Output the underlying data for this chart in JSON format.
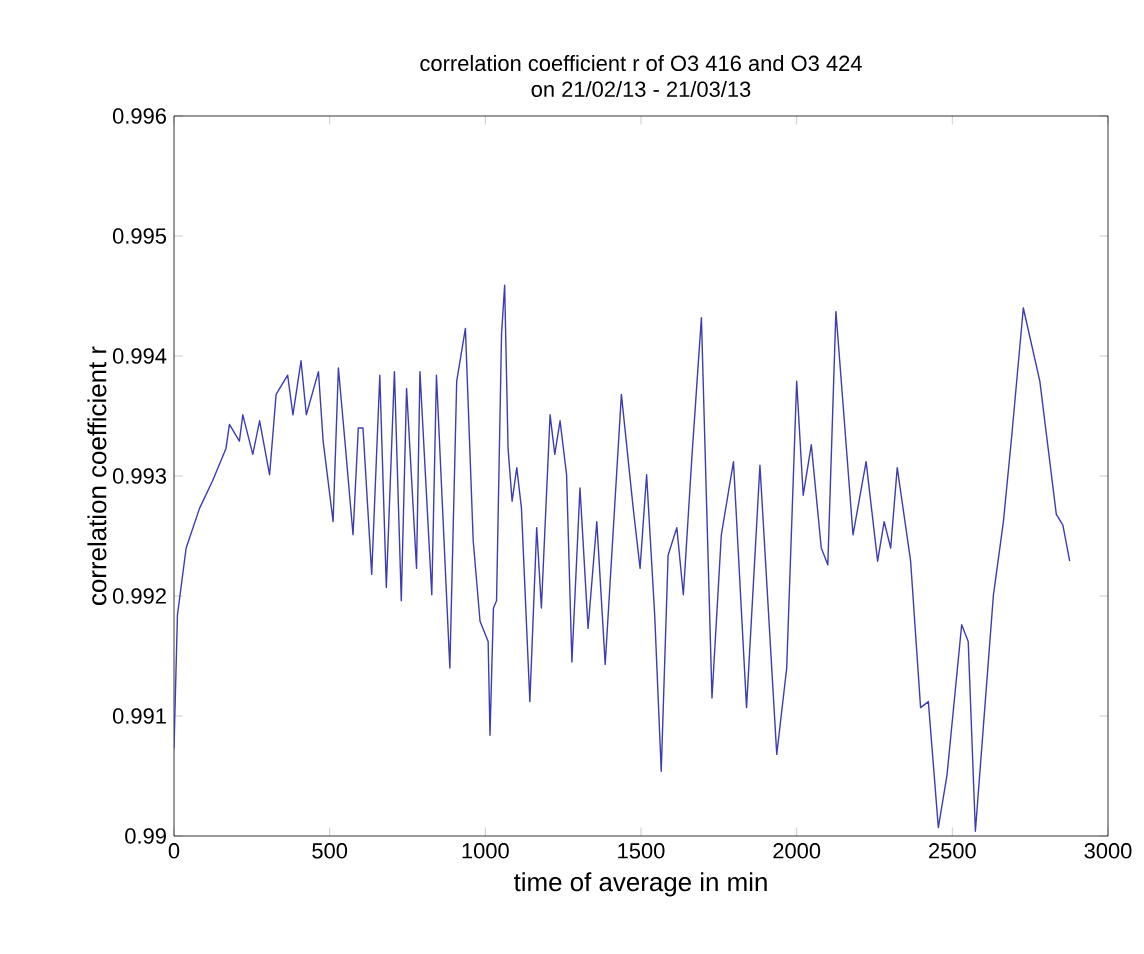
{
  "chart_data": {
    "type": "line",
    "title": "correlation coefficient r of O3 416  and O3 424",
    "subtitle": "on 21/02/13 - 21/03/13",
    "xlabel": "time of average in min",
    "ylabel": "correlation coefficient r",
    "xlim": [
      0,
      3000
    ],
    "ylim": [
      0.99,
      0.996
    ],
    "xticks": [
      0,
      500,
      1000,
      1500,
      2000,
      2500,
      3000
    ],
    "yticks": [
      0.99,
      0.991,
      0.992,
      0.993,
      0.994,
      0.995,
      0.996
    ],
    "series": [
      {
        "color": "#3c3cb4",
        "x": [
          0,
          11,
          39,
          82,
          124,
          167,
          178,
          210,
          221,
          253,
          275,
          307,
          328,
          365,
          382,
          408,
          425,
          464,
          479,
          511,
          528,
          549,
          575,
          592,
          607,
          635,
          661,
          682,
          708,
          730,
          747,
          779,
          790,
          828,
          843,
          886,
          908,
          936,
          961,
          983,
          1009,
          1015,
          1026,
          1036,
          1052,
          1062,
          1073,
          1086,
          1101,
          1116,
          1143,
          1165,
          1180,
          1208,
          1223,
          1240,
          1261,
          1278,
          1304,
          1330,
          1358,
          1385,
          1437,
          1475,
          1497,
          1518,
          1544,
          1565,
          1587,
          1615,
          1636,
          1664,
          1694,
          1728,
          1758,
          1797,
          1839,
          1882,
          1936,
          1968,
          2000,
          2021,
          2047,
          2079,
          2100,
          2126,
          2153,
          2181,
          2223,
          2260,
          2281,
          2302,
          2323,
          2366,
          2398,
          2423,
          2455,
          2483,
          2530,
          2551,
          2574,
          2632,
          2664,
          2691,
          2728,
          2781,
          2834,
          2855,
          2877
        ],
        "values": [
          0.99073,
          0.99184,
          0.9924,
          0.99273,
          0.99296,
          0.99323,
          0.99343,
          0.99329,
          0.99351,
          0.99318,
          0.99346,
          0.99301,
          0.99368,
          0.99384,
          0.99351,
          0.99396,
          0.99351,
          0.99387,
          0.99329,
          0.99262,
          0.9939,
          0.99329,
          0.99251,
          0.9934,
          0.9934,
          0.99218,
          0.99384,
          0.99207,
          0.99387,
          0.99196,
          0.99373,
          0.99223,
          0.99387,
          0.99201,
          0.99384,
          0.9914,
          0.99379,
          0.99423,
          0.99246,
          0.99179,
          0.99162,
          0.99084,
          0.9919,
          0.99196,
          0.99418,
          0.99459,
          0.99323,
          0.99279,
          0.99307,
          0.99273,
          0.99112,
          0.99257,
          0.9919,
          0.99351,
          0.99318,
          0.99346,
          0.99301,
          0.99145,
          0.9929,
          0.99173,
          0.99262,
          0.99143,
          0.99368,
          0.99273,
          0.99223,
          0.99301,
          0.99184,
          0.99054,
          0.99234,
          0.99257,
          0.99201,
          0.99318,
          0.99432,
          0.99115,
          0.99251,
          0.99312,
          0.99107,
          0.99309,
          0.99068,
          0.9914,
          0.99379,
          0.99284,
          0.99326,
          0.9924,
          0.99226,
          0.99437,
          0.99346,
          0.99251,
          0.99312,
          0.99229,
          0.99262,
          0.9924,
          0.99307,
          0.99229,
          0.99107,
          0.99112,
          0.99007,
          0.99051,
          0.99176,
          0.99162,
          0.99004,
          0.99201,
          0.99262,
          0.99334,
          0.9944,
          0.99379,
          0.99268,
          0.99259,
          0.99229
        ]
      }
    ]
  }
}
